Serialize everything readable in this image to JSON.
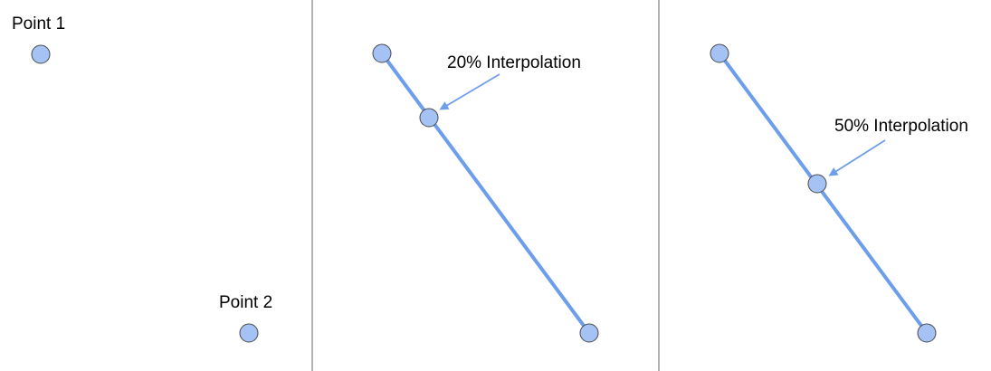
{
  "colors": {
    "background": "#ffffff",
    "point_fill": "#a4c2f4",
    "point_stroke": "#4a4a4a",
    "line": "#6d9eeb",
    "arrow": "#6d9eeb",
    "divider": "#808080",
    "text": "#000000"
  },
  "panels": [
    {
      "labels": [
        "Point 1",
        "Point 2"
      ]
    },
    {
      "annotation": "20% Interpolation",
      "interpolation_fraction": 0.2
    },
    {
      "annotation": "50% Interpolation",
      "interpolation_fraction": 0.5
    }
  ]
}
